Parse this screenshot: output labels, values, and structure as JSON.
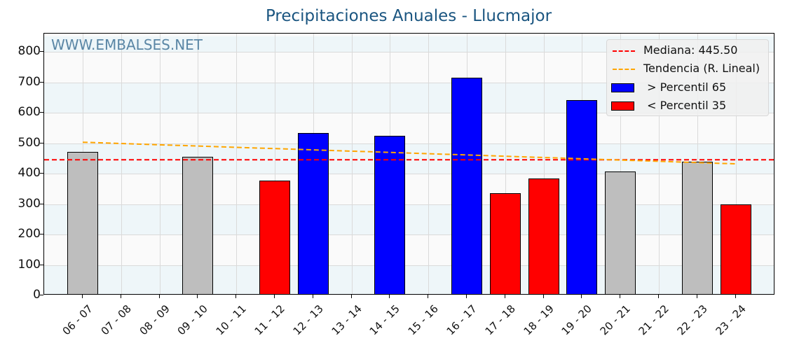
{
  "chart_data": {
    "type": "bar",
    "title": "Precipitaciones Anuales - Llucmajor",
    "watermark": "WWW.EMBALSES.NET",
    "xlabel": "",
    "ylabel": "",
    "ylim": [
      0,
      850
    ],
    "yticks": [
      0,
      100,
      200,
      300,
      400,
      500,
      600,
      700,
      800
    ],
    "grid": true,
    "legend_position": "upper right",
    "categories": [
      "06 - 07",
      "07 - 08",
      "08 - 09",
      "09 - 10",
      "10 - 11",
      "11 - 12",
      "12 - 13",
      "13 - 14",
      "14 - 15",
      "15 - 16",
      "16 - 17",
      "17 - 18",
      "18 - 19",
      "19 - 20",
      "20 - 21",
      "21 - 22",
      "22 - 23",
      "23 - 24"
    ],
    "values": [
      471,
      null,
      null,
      455,
      null,
      377,
      533,
      null,
      524,
      null,
      715,
      336,
      384,
      641,
      407,
      null,
      439,
      299
    ],
    "bar_classes": [
      "normal",
      null,
      null,
      "normal",
      null,
      "low",
      "high",
      null,
      "high",
      null,
      "high",
      "low",
      "low",
      "high",
      "normal",
      null,
      "normal",
      "low"
    ],
    "median": 445.5,
    "trend": {
      "start": 503,
      "end": 432
    },
    "colors": {
      "high": "#0000ff",
      "low": "#ff0000",
      "normal": "#bebebe",
      "median": "#ff0000",
      "trend": "#ffa500",
      "title": "#1a5580",
      "watermark": "#5a86a5"
    },
    "legend": [
      {
        "type": "line",
        "color": "#ff0000",
        "label": "Mediana: 445.50"
      },
      {
        "type": "line",
        "color": "#ffa500",
        "label": "Tendencia (R. Lineal)"
      },
      {
        "type": "patch",
        "color": "#0000ff",
        "label": " > Percentil 65"
      },
      {
        "type": "patch",
        "color": "#ff0000",
        "label": " < Percentil 35"
      }
    ]
  }
}
